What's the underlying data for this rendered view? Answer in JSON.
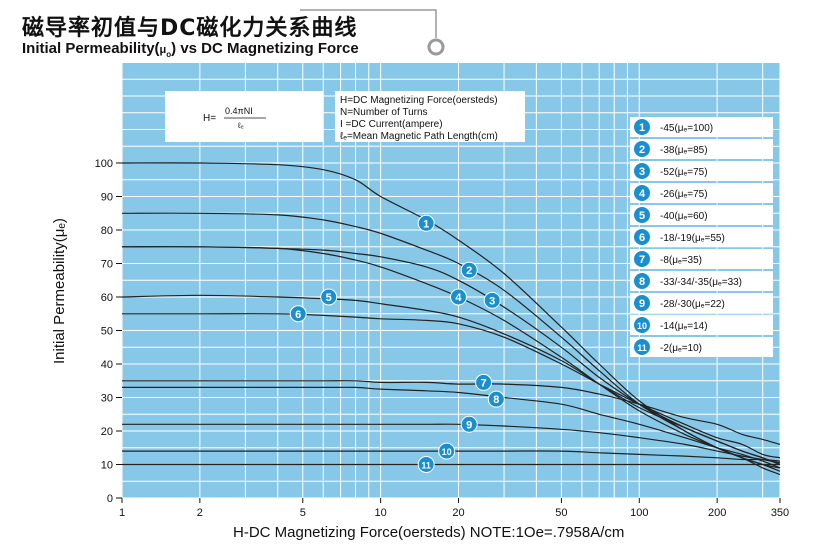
{
  "title_cn": "磁导率初值与DC磁化力关系曲线",
  "title_en_prefix": "Initial Permeability(",
  "title_en_mu": "μ",
  "title_en_sub": "o",
  "title_en_suffix": ") vs DC Magnetizing Force",
  "formula": {
    "lhs": "H=",
    "numerator": "0.4πNI",
    "denominator": "ℓₑ"
  },
  "definitions": [
    "H=DC Magnetizing Force(oersteds)",
    "N=Number of Turns",
    "I =DC Current(ampere)",
    "ℓₑ=Mean Magnetic Path Length(cm)"
  ],
  "xlabel": "H-DC Magnetizing Force(oersteds)   NOTE:1Oe=.7958A/cm",
  "ylabel": "Initial Permeability(μₑ)",
  "colors": {
    "plot_bg": "#87c8e8",
    "grid": "#ffffff",
    "curve": "#222222",
    "badge": "#1a8fd0",
    "frame_line": "#9a9a9a"
  },
  "chart_data": {
    "type": "line",
    "x_scale": "log",
    "xlim": [
      1,
      350
    ],
    "ylim": [
      0,
      100
    ],
    "x_ticks": [
      1,
      2,
      5,
      10,
      20,
      50,
      100,
      200,
      350
    ],
    "y_ticks": [
      0,
      10,
      20,
      30,
      40,
      50,
      60,
      70,
      80,
      90,
      100
    ],
    "grid": true,
    "series": [
      {
        "name": "-45(μₑ=100)",
        "label": "1",
        "x": [
          1,
          2,
          4,
          6,
          8,
          10,
          15,
          20,
          30,
          50,
          70,
          100,
          150,
          200,
          250,
          300,
          350
        ],
        "y": [
          100,
          100,
          99.5,
          98,
          95,
          90,
          83,
          77,
          67,
          51,
          40,
          29,
          20,
          15,
          12,
          10,
          8
        ]
      },
      {
        "name": "-38(μₑ=85)",
        "label": "2",
        "x": [
          1,
          2,
          4,
          6,
          8,
          10,
          15,
          20,
          30,
          50,
          70,
          100,
          150,
          200,
          250,
          300,
          350
        ],
        "y": [
          85,
          85,
          84.5,
          83,
          81,
          79,
          74,
          70,
          62,
          48,
          38,
          28,
          20,
          15,
          12,
          10,
          9
        ]
      },
      {
        "name": "-52(μₑ=75)",
        "label": "3",
        "x": [
          1,
          2,
          4,
          6,
          8,
          10,
          15,
          20,
          30,
          50,
          70,
          100,
          150,
          200,
          250,
          300,
          350
        ],
        "y": [
          75,
          75,
          74.5,
          73,
          71,
          69,
          64,
          60,
          53,
          42,
          34,
          26,
          19,
          15,
          12,
          9,
          7
        ]
      },
      {
        "name": "-26(μₑ=75)",
        "label": "4",
        "x": [
          1,
          2,
          4,
          6,
          8,
          10,
          15,
          20,
          30,
          50,
          70,
          100,
          150,
          200,
          250,
          300,
          350
        ],
        "y": [
          75,
          75,
          74.5,
          74,
          73,
          72,
          69,
          65,
          57,
          45,
          36,
          28,
          21,
          17,
          14,
          12,
          10
        ]
      },
      {
        "name": "-40(μₑ=60)",
        "label": "5",
        "x": [
          1,
          2,
          4,
          6,
          8,
          10,
          15,
          20,
          30,
          50,
          70,
          100,
          150,
          200,
          250,
          300,
          350
        ],
        "y": [
          60,
          60.5,
          60,
          59.5,
          59,
          58,
          56,
          54,
          49,
          41,
          34,
          27,
          21,
          17,
          14,
          12,
          10
        ]
      },
      {
        "name": "-18/-19(μₑ=55)",
        "label": "6",
        "x": [
          1,
          2,
          4,
          6,
          8,
          10,
          15,
          20,
          30,
          50,
          70,
          100,
          150,
          200,
          250,
          300,
          350
        ],
        "y": [
          55,
          55,
          55,
          54.5,
          54,
          53.5,
          53,
          52,
          48,
          40,
          34,
          28,
          22,
          18,
          16,
          13,
          12
        ]
      },
      {
        "name": "-8(μₑ=35)",
        "label": "7",
        "x": [
          1,
          2,
          4,
          6,
          8,
          10,
          15,
          20,
          30,
          50,
          70,
          100,
          150,
          200,
          250,
          300,
          350
        ],
        "y": [
          35,
          35,
          35,
          35,
          35,
          34.5,
          34.5,
          34,
          34,
          33,
          31,
          28,
          24,
          22,
          19,
          17.5,
          16
        ]
      },
      {
        "name": "-33/-34/-35(μₑ=33)",
        "label": "8",
        "x": [
          1,
          2,
          4,
          6,
          8,
          10,
          15,
          20,
          30,
          50,
          70,
          100,
          150,
          200,
          250,
          300,
          350
        ],
        "y": [
          33,
          33,
          33,
          33,
          33,
          32.5,
          32,
          31.5,
          30,
          28,
          25,
          22,
          18,
          15,
          13,
          11,
          9
        ]
      },
      {
        "name": "-28/-30(μₑ=22)",
        "label": "9",
        "x": [
          1,
          2,
          4,
          6,
          8,
          10,
          15,
          20,
          30,
          50,
          70,
          100,
          150,
          200,
          250,
          300,
          350
        ],
        "y": [
          22,
          22,
          22,
          22,
          22,
          22,
          22,
          22,
          21.5,
          20.5,
          19.5,
          18,
          16,
          14,
          12.5,
          11.5,
          10.5
        ]
      },
      {
        "name": "-14(μₑ=14)",
        "label": "10",
        "x": [
          1,
          2,
          4,
          6,
          8,
          10,
          15,
          20,
          30,
          50,
          70,
          100,
          150,
          200,
          250,
          300,
          350
        ],
        "y": [
          14,
          14,
          14,
          14,
          14,
          14,
          14,
          14,
          14,
          14,
          13.5,
          13,
          12.5,
          12,
          11.5,
          11.5,
          11
        ]
      },
      {
        "name": "-2(μₑ=10)",
        "label": "11",
        "x": [
          1,
          2,
          4,
          6,
          8,
          10,
          15,
          20,
          30,
          50,
          70,
          100,
          150,
          200,
          250,
          300,
          350
        ],
        "y": [
          10,
          10,
          10,
          10,
          10,
          10,
          10,
          10,
          10,
          10,
          10,
          10,
          10,
          10,
          10,
          10,
          10
        ]
      }
    ],
    "curve_labels": [
      {
        "label": "1",
        "x": 15,
        "y": 82
      },
      {
        "label": "2",
        "x": 22,
        "y": 68
      },
      {
        "label": "3",
        "x": 27,
        "y": 59
      },
      {
        "label": "4",
        "x": 20,
        "y": 60
      },
      {
        "label": "5",
        "x": 6.3,
        "y": 60
      },
      {
        "label": "6",
        "x": 4.8,
        "y": 55
      },
      {
        "label": "7",
        "x": 25,
        "y": 34.5
      },
      {
        "label": "8",
        "x": 28,
        "y": 29.5
      },
      {
        "label": "9",
        "x": 22,
        "y": 22
      },
      {
        "label": "10",
        "x": 18,
        "y": 14
      },
      {
        "label": "11",
        "x": 15,
        "y": 10
      }
    ]
  }
}
